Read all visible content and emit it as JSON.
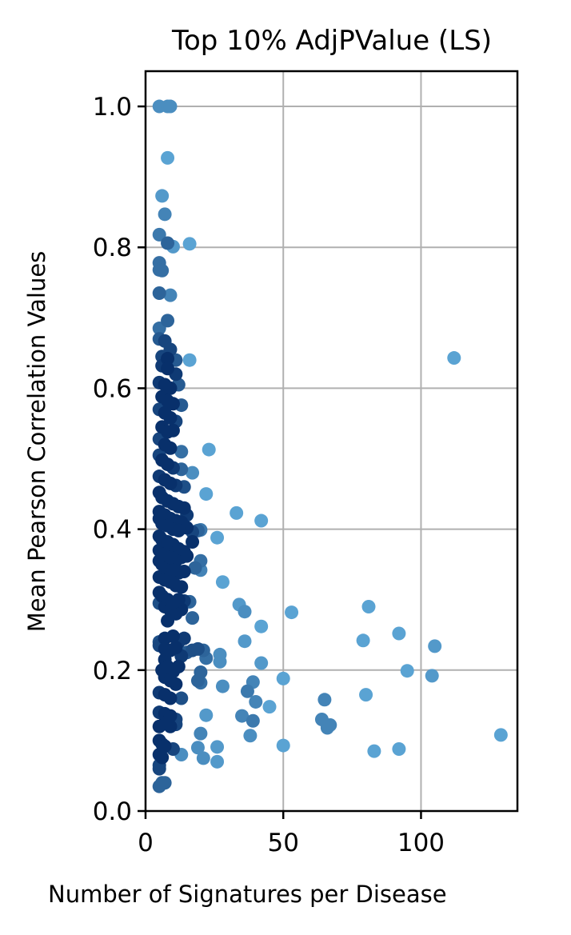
{
  "chart_data": {
    "type": "scatter",
    "title": "Top 10% AdjPValue (LS)",
    "xlabel": "Number of Signatures per Disease",
    "ylabel": "Mean Pearson Correlation Values",
    "xlim": [
      0,
      135
    ],
    "ylim": [
      0,
      1.05
    ],
    "x_ticks": [
      0,
      50,
      100
    ],
    "y_ticks": [
      0.0,
      0.2,
      0.4,
      0.6,
      0.8,
      1.0
    ],
    "x_tick_labels": [
      "0",
      "50",
      "100"
    ],
    "y_tick_labels": [
      "0.0",
      "0.2",
      "0.4",
      "0.6",
      "0.8",
      "1.0"
    ],
    "grid": true,
    "legend": "none",
    "colormap": "Blues (darker = more dense)",
    "colors": {
      "light": "#5aa3d3",
      "mid": "#1f6fb2",
      "dark": "#0b4a91",
      "darkest": "#08306b"
    },
    "points": [
      [
        5,
        1.0
      ],
      [
        8,
        1.0
      ],
      [
        9,
        1.0
      ],
      [
        8,
        0.927
      ],
      [
        6,
        0.873
      ],
      [
        7,
        0.847
      ],
      [
        5,
        0.818
      ],
      [
        8,
        0.806
      ],
      [
        10,
        0.801
      ],
      [
        16,
        0.805
      ],
      [
        5,
        0.778
      ],
      [
        5,
        0.768
      ],
      [
        6,
        0.767
      ],
      [
        5,
        0.735
      ],
      [
        9,
        0.732
      ],
      [
        8,
        0.696
      ],
      [
        5,
        0.685
      ],
      [
        5,
        0.67
      ],
      [
        7,
        0.667
      ],
      [
        9,
        0.655
      ],
      [
        6,
        0.645
      ],
      [
        8,
        0.642
      ],
      [
        11,
        0.64
      ],
      [
        16,
        0.64
      ],
      [
        6,
        0.632
      ],
      [
        8,
        0.628
      ],
      [
        11,
        0.62
      ],
      [
        112,
        0.643
      ],
      [
        5,
        0.608
      ],
      [
        7,
        0.605
      ],
      [
        9,
        0.6
      ],
      [
        12,
        0.605
      ],
      [
        6,
        0.588
      ],
      [
        8,
        0.582
      ],
      [
        10,
        0.578
      ],
      [
        13,
        0.576
      ],
      [
        5,
        0.57
      ],
      [
        7,
        0.565
      ],
      [
        9,
        0.558
      ],
      [
        11,
        0.553
      ],
      [
        6,
        0.545
      ],
      [
        8,
        0.538
      ],
      [
        10,
        0.54
      ],
      [
        5,
        0.528
      ],
      [
        7,
        0.52
      ],
      [
        9,
        0.515
      ],
      [
        13,
        0.51
      ],
      [
        23,
        0.513
      ],
      [
        5,
        0.505
      ],
      [
        6,
        0.498
      ],
      [
        8,
        0.492
      ],
      [
        10,
        0.487
      ],
      [
        13,
        0.485
      ],
      [
        17,
        0.48
      ],
      [
        5,
        0.475
      ],
      [
        7,
        0.47
      ],
      [
        9,
        0.465
      ],
      [
        11,
        0.462
      ],
      [
        14,
        0.46
      ],
      [
        22,
        0.45
      ],
      [
        5,
        0.452
      ],
      [
        6,
        0.445
      ],
      [
        8,
        0.44
      ],
      [
        10,
        0.436
      ],
      [
        12,
        0.432
      ],
      [
        14,
        0.43
      ],
      [
        5,
        0.425
      ],
      [
        7,
        0.42
      ],
      [
        9,
        0.415
      ],
      [
        11,
        0.412
      ],
      [
        13,
        0.41
      ],
      [
        15,
        0.42
      ],
      [
        5,
        0.415
      ],
      [
        6,
        0.408
      ],
      [
        8,
        0.405
      ],
      [
        10,
        0.4
      ],
      [
        12,
        0.398
      ],
      [
        15,
        0.402
      ],
      [
        17,
        0.396
      ],
      [
        19,
        0.398
      ],
      [
        20,
        0.399
      ],
      [
        33,
        0.423
      ],
      [
        42,
        0.412
      ],
      [
        5,
        0.39
      ],
      [
        6,
        0.385
      ],
      [
        8,
        0.382
      ],
      [
        10,
        0.378
      ],
      [
        12,
        0.372
      ],
      [
        14,
        0.368
      ],
      [
        17,
        0.382
      ],
      [
        26,
        0.388
      ],
      [
        5,
        0.37
      ],
      [
        7,
        0.365
      ],
      [
        9,
        0.36
      ],
      [
        11,
        0.355
      ],
      [
        13,
        0.36
      ],
      [
        15,
        0.362
      ],
      [
        5,
        0.355
      ],
      [
        6,
        0.35
      ],
      [
        8,
        0.345
      ],
      [
        10,
        0.342
      ],
      [
        12,
        0.338
      ],
      [
        14,
        0.34
      ],
      [
        18,
        0.345
      ],
      [
        20,
        0.342
      ],
      [
        20,
        0.355
      ],
      [
        5,
        0.332
      ],
      [
        7,
        0.328
      ],
      [
        9,
        0.325
      ],
      [
        11,
        0.32
      ],
      [
        13,
        0.318
      ],
      [
        28,
        0.325
      ],
      [
        5,
        0.31
      ],
      [
        6,
        0.305
      ],
      [
        8,
        0.3
      ],
      [
        10,
        0.296
      ],
      [
        12,
        0.3
      ],
      [
        14,
        0.298
      ],
      [
        16,
        0.297
      ],
      [
        34,
        0.293
      ],
      [
        36,
        0.283
      ],
      [
        5,
        0.295
      ],
      [
        7,
        0.29
      ],
      [
        9,
        0.285
      ],
      [
        11,
        0.28
      ],
      [
        13,
        0.286
      ],
      [
        17,
        0.274
      ],
      [
        8,
        0.27
      ],
      [
        42,
        0.262
      ],
      [
        53,
        0.282
      ],
      [
        81,
        0.29
      ],
      [
        5,
        0.24
      ],
      [
        7,
        0.245
      ],
      [
        10,
        0.248
      ],
      [
        12,
        0.24
      ],
      [
        14,
        0.245
      ],
      [
        36,
        0.241
      ],
      [
        79,
        0.242
      ],
      [
        92,
        0.252
      ],
      [
        105,
        0.234
      ],
      [
        5,
        0.235
      ],
      [
        7,
        0.23
      ],
      [
        9,
        0.228
      ],
      [
        11,
        0.232
      ],
      [
        13,
        0.22
      ],
      [
        15,
        0.225
      ],
      [
        17,
        0.228
      ],
      [
        19,
        0.23
      ],
      [
        21,
        0.228
      ],
      [
        22,
        0.217
      ],
      [
        27,
        0.222
      ],
      [
        27,
        0.212
      ],
      [
        42,
        0.21
      ],
      [
        7,
        0.215
      ],
      [
        6,
        0.2
      ],
      [
        8,
        0.205
      ],
      [
        10,
        0.198
      ],
      [
        12,
        0.205
      ],
      [
        20,
        0.197
      ],
      [
        95,
        0.199
      ],
      [
        104,
        0.192
      ],
      [
        50,
        0.188
      ],
      [
        7,
        0.19
      ],
      [
        9,
        0.185
      ],
      [
        11,
        0.18
      ],
      [
        19,
        0.185
      ],
      [
        20,
        0.182
      ],
      [
        28,
        0.177
      ],
      [
        39,
        0.183
      ],
      [
        37,
        0.17
      ],
      [
        5,
        0.168
      ],
      [
        7,
        0.165
      ],
      [
        9,
        0.16
      ],
      [
        13,
        0.16
      ],
      [
        40,
        0.155
      ],
      [
        45,
        0.148
      ],
      [
        65,
        0.158
      ],
      [
        80,
        0.165
      ],
      [
        5,
        0.14
      ],
      [
        7,
        0.138
      ],
      [
        9,
        0.135
      ],
      [
        11,
        0.13
      ],
      [
        22,
        0.136
      ],
      [
        35,
        0.135
      ],
      [
        39,
        0.128
      ],
      [
        64,
        0.13
      ],
      [
        66,
        0.118
      ],
      [
        67,
        0.122
      ],
      [
        5,
        0.12
      ],
      [
        7,
        0.125
      ],
      [
        9,
        0.12
      ],
      [
        11,
        0.123
      ],
      [
        20,
        0.11
      ],
      [
        38,
        0.107
      ],
      [
        129,
        0.108
      ],
      [
        5,
        0.1
      ],
      [
        6,
        0.095
      ],
      [
        7,
        0.092
      ],
      [
        10,
        0.088
      ],
      [
        13,
        0.08
      ],
      [
        19,
        0.09
      ],
      [
        26,
        0.091
      ],
      [
        50,
        0.093
      ],
      [
        83,
        0.085
      ],
      [
        92,
        0.088
      ],
      [
        5,
        0.08
      ],
      [
        6,
        0.076
      ],
      [
        21,
        0.075
      ],
      [
        26,
        0.07
      ],
      [
        5,
        0.065
      ],
      [
        5,
        0.06
      ],
      [
        6,
        0.04
      ],
      [
        7,
        0.04
      ],
      [
        5,
        0.035
      ]
    ]
  }
}
